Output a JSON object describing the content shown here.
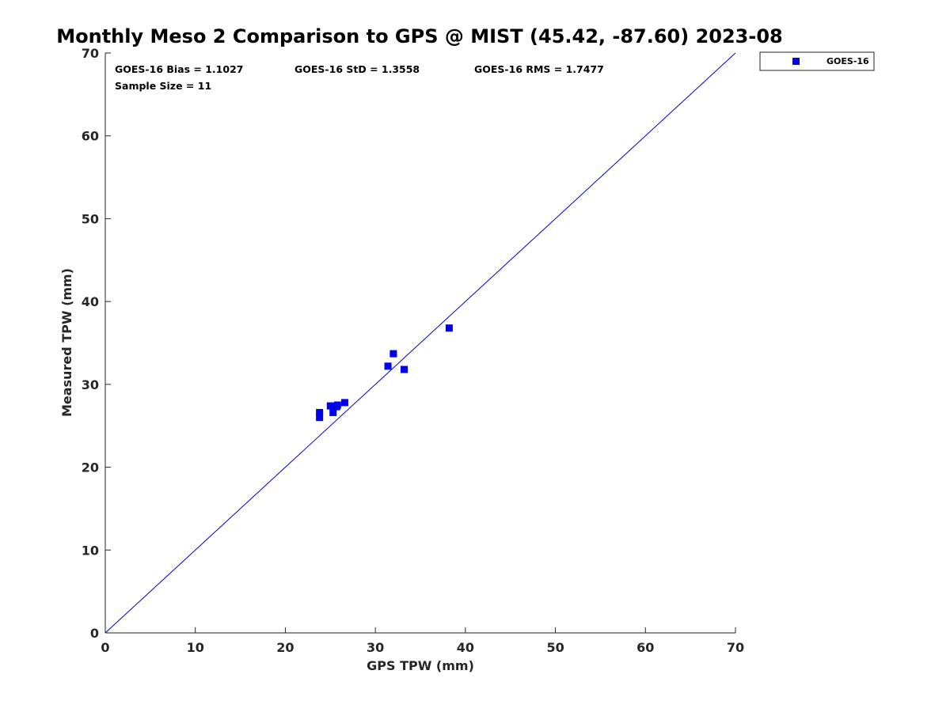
{
  "chart_data": {
    "type": "scatter",
    "title": "Monthly Meso 2 Comparison to GPS @ MIST (45.42, -87.60) 2023-08",
    "xlabel": "GPS TPW (mm)",
    "ylabel": "Measured TPW (mm)",
    "xlim": [
      0,
      70
    ],
    "ylim": [
      0,
      70
    ],
    "xticks": [
      0,
      10,
      20,
      30,
      40,
      50,
      60,
      70
    ],
    "yticks": [
      0,
      10,
      20,
      30,
      40,
      50,
      60,
      70
    ],
    "grid": false,
    "legend_position": "outside-top-right",
    "reference_line": {
      "type": "one-to-one",
      "from": [
        0,
        0
      ],
      "to": [
        70,
        70
      ],
      "color": "#0000cc"
    },
    "annotations": [
      "GOES-16 Bias = 1.1027",
      "GOES-16 StD = 1.3558",
      "GOES-16 RMS = 1.7477",
      "Sample Size = 11"
    ],
    "series": [
      {
        "name": "GOES-16",
        "marker": "square",
        "color": "#0000ee",
        "points": [
          {
            "x": 23.8,
            "y": 26.0
          },
          {
            "x": 23.8,
            "y": 26.6
          },
          {
            "x": 25.0,
            "y": 27.4
          },
          {
            "x": 25.3,
            "y": 26.6
          },
          {
            "x": 25.7,
            "y": 27.3
          },
          {
            "x": 26.6,
            "y": 27.8
          },
          {
            "x": 31.4,
            "y": 32.2
          },
          {
            "x": 32.0,
            "y": 33.7
          },
          {
            "x": 33.2,
            "y": 31.8
          },
          {
            "x": 38.2,
            "y": 36.8
          },
          {
            "x": 25.8,
            "y": 27.5
          }
        ]
      }
    ]
  }
}
